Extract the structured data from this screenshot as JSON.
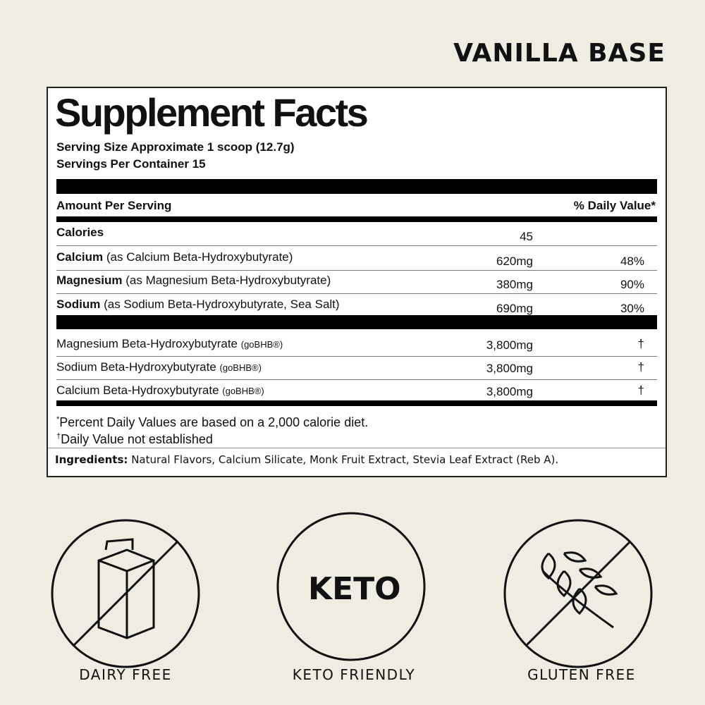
{
  "header": {
    "title": "VANILLA BASE"
  },
  "facts": {
    "title": "Supplement Facts",
    "serving_size": "Serving Size Approximate 1 scoop (12.7g)",
    "servings_per_container": "Servings Per Container 15",
    "amount_header": "Amount Per Serving",
    "dv_header": "% Daily Value*",
    "rows": [
      {
        "name": "Calories",
        "detail": "",
        "amount": "45",
        "dv": ""
      },
      {
        "name": "Calcium",
        "detail": "(as Calcium Beta-Hydroxybutyrate)",
        "amount": "620mg",
        "dv": "48%"
      },
      {
        "name": "Magnesium",
        "detail": "(as Magnesium Beta-Hydroxybutyrate)",
        "amount": "380mg",
        "dv": "90%"
      },
      {
        "name": "Sodium",
        "detail": "(as Sodium Beta-Hydroxybutyrate, Sea Salt)",
        "amount": "690mg",
        "dv": "30%"
      }
    ],
    "blend": [
      {
        "name": "Magnesium Beta-Hydroxybutyrate",
        "tag": "(goBHB®)",
        "amount": "3,800mg",
        "dv": "†"
      },
      {
        "name": "Sodium Beta-Hydroxybutyrate",
        "tag": "(goBHB®)",
        "amount": "3,800mg",
        "dv": "†"
      },
      {
        "name": "Calcium Beta-Hydroxybutyrate",
        "tag": "(goBHB®)",
        "amount": "3,800mg",
        "dv": "†"
      }
    ],
    "footnotes": [
      {
        "mark": "*",
        "text": "Percent Daily Values are based on a 2,000 calorie diet."
      },
      {
        "mark": "†",
        "text": "Daily Value not established"
      }
    ],
    "ingredients_label": "Ingredients:",
    "ingredients": "Natural Flavors, Calcium Silicate, Monk Fruit Extract, Stevia Leaf Extract (Reb A)."
  },
  "badges": [
    {
      "label": "DAIRY FREE"
    },
    {
      "icon_text": "KETO",
      "label": "KETO FRIENDLY"
    },
    {
      "label": "GLUTEN FREE"
    }
  ]
}
